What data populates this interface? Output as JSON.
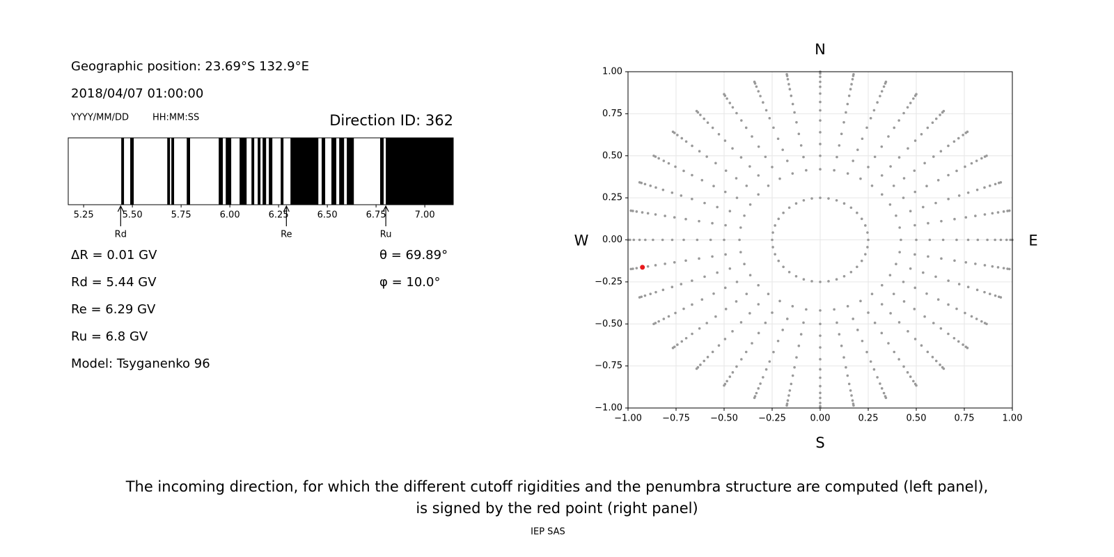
{
  "info": {
    "position": "Geographic position: 23.69°S 132.9°E",
    "datetime": "2018/04/07 01:00:00",
    "date_format": "YYYY/MM/DD",
    "time_format": "HH:MM:SS",
    "direction_id": "Direction ID: 362",
    "lines": [
      "ΔR = 0.01 GV",
      "Rd = 5.44 GV",
      "Re = 6.29 GV",
      "Ru = 6.8 GV",
      "Model: Tsyganenko 96"
    ],
    "angles": [
      "θ = 69.89°",
      "φ = 10.0°"
    ]
  },
  "chart_data": [
    {
      "type": "penumbra",
      "color": "#000000",
      "xlim": [
        5.171,
        7.146
      ],
      "xticks": [
        5.25,
        {
          "value": 5.5,
          "label": "5.50"
        },
        5.75,
        {
          "value": 6.0,
          "label": "6.00"
        },
        6.25,
        {
          "value": 6.5,
          "label": "6.50"
        },
        6.75,
        {
          "value": 7.0,
          "label": "7.00"
        }
      ],
      "bands": [
        [
          5.443,
          5.457
        ],
        [
          5.489,
          5.507
        ],
        [
          5.679,
          5.693
        ],
        [
          5.7,
          5.714
        ],
        [
          5.779,
          5.796
        ],
        [
          5.943,
          5.964
        ],
        [
          5.979,
          6.007
        ],
        [
          6.05,
          6.086
        ],
        [
          6.111,
          6.125
        ],
        [
          6.143,
          6.157
        ],
        [
          6.168,
          6.186
        ],
        [
          6.2,
          6.218
        ],
        [
          6.261,
          6.275
        ],
        [
          6.311,
          6.454
        ],
        [
          6.471,
          6.489
        ],
        [
          6.521,
          6.546
        ],
        [
          6.561,
          6.586
        ],
        [
          6.6,
          6.636
        ],
        [
          6.771,
          6.789
        ],
        [
          6.8,
          7.146
        ]
      ],
      "markers": [
        {
          "label": "Rd",
          "value": 5.44
        },
        {
          "label": "Re",
          "value": 6.29
        },
        {
          "label": "Ru",
          "value": 6.8
        }
      ]
    },
    {
      "type": "direction_map",
      "grid": true,
      "xlim": [
        -1,
        1
      ],
      "ylim": [
        -1,
        1
      ],
      "xticks": [
        {
          "value": -1,
          "label": "−1.00"
        },
        {
          "value": -0.75,
          "label": "−0.75"
        },
        {
          "value": -0.5,
          "label": "−0.50"
        },
        {
          "value": -0.25,
          "label": "−0.25"
        },
        {
          "value": 0,
          "label": "0.00"
        },
        0.25,
        {
          "value": 0.5,
          "label": "0.50"
        },
        0.75,
        {
          "value": 1,
          "label": "1.00"
        }
      ],
      "yticks": [
        {
          "value": -1,
          "label": "−1.00"
        },
        {
          "value": -0.75,
          "label": "−0.75"
        },
        {
          "value": -0.5,
          "label": "−0.50"
        },
        {
          "value": -0.25,
          "label": "−0.25"
        },
        {
          "value": 0,
          "label": "0.00"
        },
        0.25,
        {
          "value": 0.5,
          "label": "0.50"
        },
        0.75,
        {
          "value": 1,
          "label": "1.00"
        }
      ],
      "directions": {
        "color": "#999999",
        "radius": [
          0.25,
          0.42,
          0.5,
          0.57,
          0.64,
          0.71,
          0.77,
          0.82,
          0.87,
          0.91,
          0.94,
          0.97,
          0.99,
          1.0
        ],
        "azimuth": [
          0,
          10,
          20,
          30,
          40,
          50,
          60,
          70,
          80,
          90,
          100,
          110,
          120,
          130,
          140,
          150,
          160,
          170,
          180,
          190,
          200,
          210,
          220,
          230,
          240,
          250,
          260,
          270,
          280,
          290,
          300,
          310,
          320,
          330,
          340,
          350
        ]
      },
      "selected": {
        "x": -0.925,
        "y": -0.163,
        "color": "#e8191c"
      },
      "compass": {
        "north": "N",
        "south": "S",
        "west": "W",
        "east": "E"
      }
    }
  ],
  "caption": [
    "The incoming direction, for which the different cutoff rigidities and the penumbra structure are computed (left panel),",
    "is signed by the red point (right panel)"
  ],
  "credit": "IEP SAS"
}
